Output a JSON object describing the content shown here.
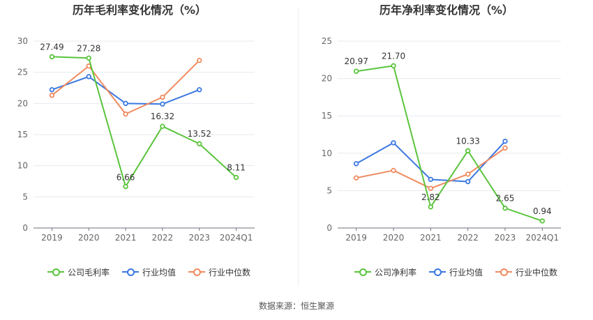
{
  "source_text": "数据来源：恒生聚源",
  "chart_data": [
    {
      "type": "line",
      "title": "历年毛利率变化情况（%）",
      "categories": [
        "2019",
        "2020",
        "2021",
        "2022",
        "2023",
        "2024Q1"
      ],
      "ylim": [
        0,
        30
      ],
      "yticks": [
        0,
        5,
        10,
        15,
        20,
        25,
        30
      ],
      "grid": true,
      "legend_position": "bottom",
      "series": [
        {
          "name": "公司毛利率",
          "color": "#5ac43c",
          "values": [
            27.49,
            27.28,
            6.66,
            16.32,
            13.52,
            8.11
          ],
          "labels": [
            "27.49",
            "27.28",
            "6.66",
            "16.32",
            "13.52",
            "8.11"
          ]
        },
        {
          "name": "行业均值",
          "color": "#3a78e0",
          "values": [
            22.2,
            24.3,
            20.0,
            19.9,
            22.2,
            null
          ]
        },
        {
          "name": "行业中位数",
          "color": "#ef8a5f",
          "values": [
            21.3,
            26.0,
            18.3,
            21.0,
            26.9,
            null
          ]
        }
      ]
    },
    {
      "type": "line",
      "title": "历年净利率变化情况（%）",
      "categories": [
        "2019",
        "2020",
        "2021",
        "2022",
        "2023",
        "2024Q1"
      ],
      "ylim": [
        0,
        25
      ],
      "yticks": [
        0,
        5,
        10,
        15,
        20,
        25
      ],
      "grid": true,
      "legend_position": "bottom",
      "series": [
        {
          "name": "公司净利率",
          "color": "#5ac43c",
          "values": [
            20.97,
            21.7,
            2.82,
            10.33,
            2.65,
            0.94
          ],
          "labels": [
            "20.97",
            "21.70",
            "2.82",
            "10.33",
            "2.65",
            "0.94"
          ]
        },
        {
          "name": "行业均值",
          "color": "#3a78e0",
          "values": [
            8.6,
            11.4,
            6.5,
            6.2,
            11.6,
            null
          ]
        },
        {
          "name": "行业中位数",
          "color": "#ef8a5f",
          "values": [
            6.7,
            7.7,
            5.3,
            7.2,
            10.7,
            null
          ]
        }
      ]
    }
  ]
}
